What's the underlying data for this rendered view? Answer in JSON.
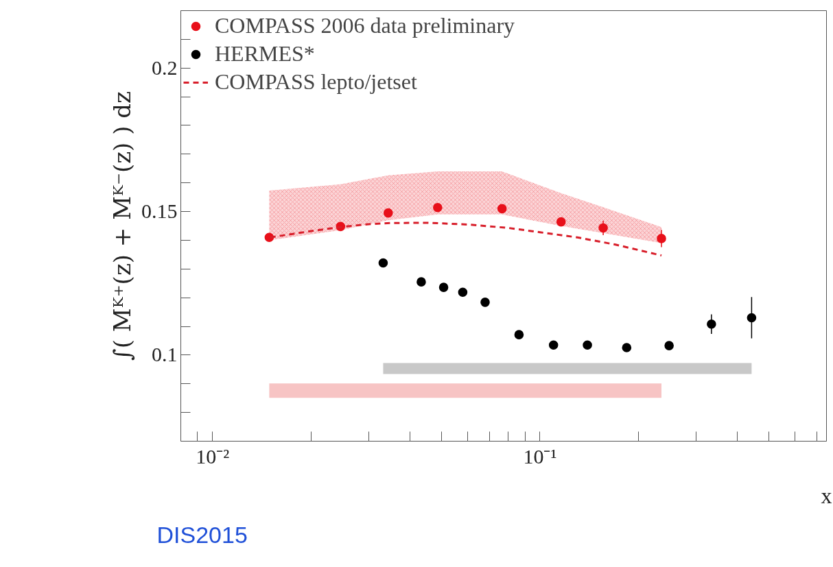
{
  "chart_data": {
    "type": "scatter",
    "xlabel": "x",
    "ylabel": "∫( Mᴷ⁺(z) + Mᴷ⁻(z) ) dz",
    "log": "x",
    "xlim": [
      0.008,
      0.75
    ],
    "ylim": [
      0.07,
      0.22
    ],
    "xticks": [
      {
        "value": 0.009,
        "label": null
      },
      {
        "value": 0.01,
        "label": "10⁻²"
      },
      {
        "value": 0.02,
        "label": null
      },
      {
        "value": 0.03,
        "label": null
      },
      {
        "value": 0.04,
        "label": null
      },
      {
        "value": 0.05,
        "label": null
      },
      {
        "value": 0.06,
        "label": null
      },
      {
        "value": 0.07,
        "label": null
      },
      {
        "value": 0.08,
        "label": null
      },
      {
        "value": 0.09,
        "label": null
      },
      {
        "value": 0.1,
        "label": "10⁻¹"
      },
      {
        "value": 0.2,
        "label": null
      },
      {
        "value": 0.3,
        "label": null
      },
      {
        "value": 0.4,
        "label": null
      },
      {
        "value": 0.5,
        "label": null
      },
      {
        "value": 0.6,
        "label": null
      },
      {
        "value": 0.7,
        "label": null
      }
    ],
    "yticks": [
      {
        "value": 0.08,
        "label": null
      },
      {
        "value": 0.09,
        "label": null
      },
      0.1,
      {
        "value": 0.11,
        "label": null
      },
      {
        "value": 0.12,
        "label": null
      },
      {
        "value": 0.13,
        "label": null
      },
      {
        "value": 0.14,
        "label": null
      },
      0.15,
      {
        "value": 0.16,
        "label": null
      },
      {
        "value": 0.17,
        "label": null
      },
      {
        "value": 0.18,
        "label": null
      },
      {
        "value": 0.19,
        "label": null
      },
      0.2,
      {
        "value": 0.21,
        "label": null
      }
    ],
    "grid": false,
    "legend": "top left",
    "series": [
      {
        "type": "line",
        "color": "#f7c4c4",
        "x": [
          0.0149,
          0.235
        ],
        "values": [
          null,
          null
        ],
        "lower": [
          0.0851,
          0.0851
        ],
        "upper": [
          0.0901,
          0.0901
        ]
      },
      {
        "type": "line",
        "color": "#c8c8c8",
        "x": [
          0.0332,
          0.443
        ],
        "values": [
          null,
          null
        ],
        "lower": [
          0.0934,
          0.0934
        ],
        "upper": [
          0.0972,
          0.0972
        ]
      },
      {
        "name": "COMPASS 2006 data preliminary",
        "marker": "circle",
        "color": "#e8101a",
        "x": [
          0.0149,
          0.0246,
          0.0344,
          0.0487,
          0.0766,
          0.116,
          0.156,
          0.235
        ],
        "values": [
          0.141,
          0.1448,
          0.1495,
          0.1514,
          0.151,
          0.1464,
          0.1443,
          0.1406
        ],
        "errors": [
          null,
          null,
          null,
          null,
          null,
          0.0015,
          0.0025,
          0.003
        ],
        "lower": [
          0.14,
          0.1435,
          0.147,
          0.149,
          0.149,
          0.145,
          0.1425,
          0.139
        ],
        "upper": [
          0.1573,
          0.1595,
          0.1626,
          0.164,
          0.164,
          0.1564,
          0.1515,
          0.1446
        ]
      },
      {
        "name": "HERMES*",
        "marker": "circle",
        "color": "#000000",
        "x": [
          0.0332,
          0.0434,
          0.0508,
          0.0581,
          0.068,
          0.0863,
          0.11,
          0.1396,
          0.184,
          0.248,
          0.334,
          0.443
        ],
        "values": [
          0.1321,
          0.1255,
          0.1236,
          0.1219,
          0.1184,
          0.1071,
          0.1035,
          0.1035,
          0.1026,
          0.1033,
          0.1108,
          0.113
        ],
        "errors": [
          null,
          null,
          null,
          0.0008,
          null,
          null,
          null,
          null,
          null,
          0.001,
          0.0034,
          0.0072
        ]
      },
      {
        "name": "COMPASS lepto/jetset",
        "type": "line",
        "line_style": "dashed",
        "color": "#d81e2a",
        "x": [
          0.015,
          0.02,
          0.025,
          0.03,
          0.035,
          0.045,
          0.06,
          0.08,
          0.1,
          0.13,
          0.17,
          0.235
        ],
        "values": [
          0.141,
          0.1432,
          0.1447,
          0.1456,
          0.146,
          0.1461,
          0.1455,
          0.1443,
          0.1428,
          0.141,
          0.1385,
          0.1347
        ]
      }
    ],
    "annotations": [
      "DIS2015"
    ]
  }
}
